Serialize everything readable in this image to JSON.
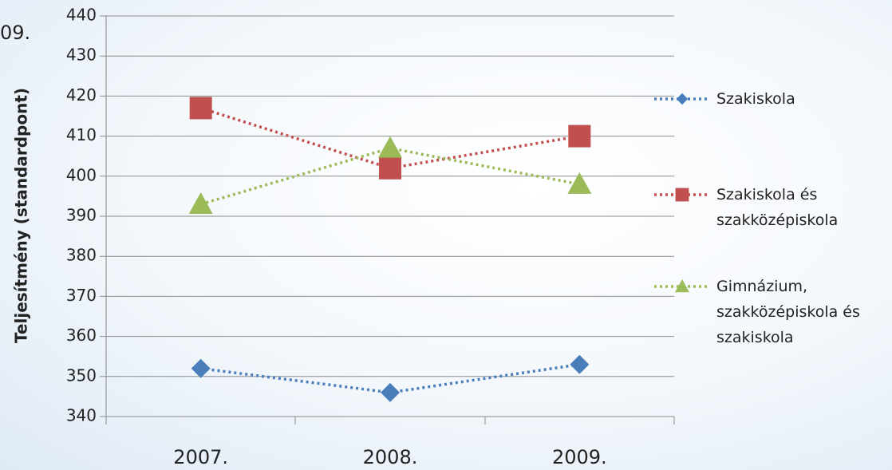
{
  "chart_data": {
    "type": "line",
    "title": "09.",
    "y_label": "Teljesítmény (standardpont)",
    "categories": [
      "2007.",
      "2008.",
      "2009."
    ],
    "series": [
      {
        "name": "Szakiskola",
        "color": "#4a7ebb",
        "marker": "diamond",
        "values": [
          352,
          346,
          353
        ]
      },
      {
        "name": "Szakiskola és szakközépiskola",
        "color": "#c0504d",
        "marker": "square",
        "values": [
          417,
          402,
          410
        ]
      },
      {
        "name": "Gimnázium, szakközépiskola és szakiskola",
        "color": "#9bbb59",
        "marker": "triangle",
        "values": [
          393,
          407,
          398
        ]
      }
    ],
    "ylim": [
      340,
      440
    ],
    "yticks": [
      340,
      350,
      360,
      370,
      380,
      390,
      400,
      410,
      420,
      430,
      440
    ],
    "grid": true,
    "legend": "right"
  }
}
